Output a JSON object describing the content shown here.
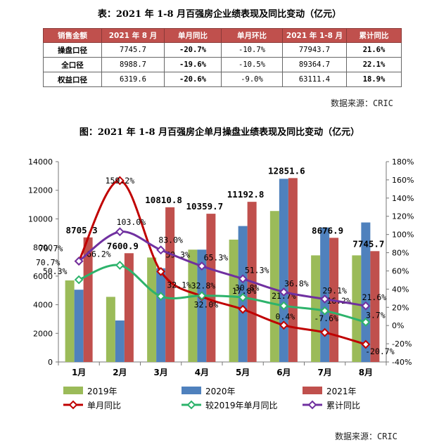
{
  "table": {
    "title": "表：2021 年 1-8 月百强房企业绩表现及同比变动（亿元）",
    "headers": [
      "销售金额",
      "2021 年 8 月",
      "单月同比",
      "单月环比",
      "2021 年 1-8 月",
      "累计同比"
    ],
    "rows": [
      [
        "操盘口径",
        "7745.7",
        "-20.7%",
        "-10.7%",
        "77943.7",
        "21.6%"
      ],
      [
        "全口径",
        "8988.7",
        "-19.6%",
        "-10.5%",
        "89364.7",
        "22.1%"
      ],
      [
        "权益口径",
        "6319.6",
        "-20.6%",
        "-9.0%",
        "63111.4",
        "18.9%"
      ]
    ],
    "source": "数据来源：CRIC"
  },
  "chart_data": {
    "type": "bar",
    "title": "图：2021 年 1-8 月百强房企单月操盘业绩表现及同比变动（亿元）",
    "categories": [
      "1月",
      "2月",
      "3月",
      "4月",
      "5月",
      "6月",
      "7月",
      "8月"
    ],
    "ylim": [
      0,
      14000
    ],
    "yticks": [
      "0",
      "2000",
      "4000",
      "6000",
      "8000",
      "10000",
      "12000",
      "14000"
    ],
    "y2lim": [
      -40,
      180
    ],
    "y2ticks": [
      "-40%",
      "-20%",
      "0%",
      "20%",
      "40%",
      "60%",
      "80%",
      "100%",
      "120%",
      "140%",
      "160%",
      "180%"
    ],
    "series": [
      {
        "name": "2019年",
        "kind": "bar",
        "color": "#9bbb59",
        "values": [
          5700,
          4550,
          7300,
          7850,
          8550,
          10550,
          7450,
          7450
        ]
      },
      {
        "name": "2020年",
        "kind": "bar",
        "color": "#4f81bd",
        "values": [
          5050,
          2900,
          6550,
          7850,
          9500,
          12800,
          9400,
          9750
        ]
      },
      {
        "name": "2021年",
        "kind": "bar",
        "color": "#c0504d",
        "values": [
          8705.3,
          7600.9,
          10810.8,
          10359.7,
          11192.8,
          12851.6,
          8676.9,
          7745.7
        ],
        "labels": [
          "8705.3",
          "7600.9",
          "10810.8",
          "10359.7",
          "11192.8",
          "12851.6",
          "8676.9",
          "7745.7"
        ]
      },
      {
        "name": "单月同比",
        "kind": "line",
        "color": "#c00000",
        "values": [
          70.7,
          159.2,
          59.3,
          32.0,
          17.8,
          0.4,
          -7.6,
          -20.7
        ],
        "labels": [
          "70.7%",
          "159.2%",
          "59.3%",
          "32.0%",
          "17.8%",
          "0.4%",
          "-7.6%",
          "-20.7%"
        ]
      },
      {
        "name": "较2019年单月同比",
        "kind": "line",
        "color": "#2db36b",
        "values": [
          50.3,
          66.2,
          32.1,
          32.8,
          30.8,
          21.7,
          16.2,
          3.7
        ],
        "labels": [
          "50.3%",
          "66.2%",
          "32.1%",
          "32.8%",
          "30.8%",
          "21.7%",
          "16.2%",
          "3.7%"
        ]
      },
      {
        "name": "累计同比",
        "kind": "line",
        "color": "#7030a0",
        "values": [
          70.7,
          103.0,
          83.0,
          65.3,
          51.3,
          36.8,
          29.1,
          21.6
        ],
        "labels": [
          "70.7%",
          "103.0%",
          "83.0%",
          "65.3%",
          "51.3%",
          "36.8%",
          "29.1%",
          "21.6%"
        ]
      }
    ],
    "source": "数据来源：CRIC"
  }
}
